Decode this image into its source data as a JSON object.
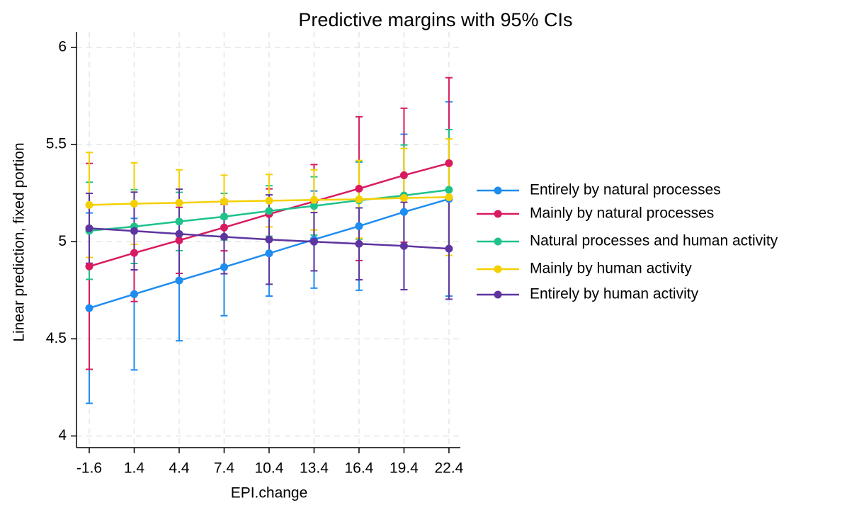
{
  "chart_data": {
    "type": "line",
    "title": "Predictive margins with 95% CIs",
    "x_label": "EPI.change",
    "y_label": "Linear prediction, fixed portion",
    "x": [
      -1.6,
      1.4,
      4.4,
      7.4,
      10.4,
      13.4,
      16.4,
      19.4,
      22.4
    ],
    "xlim": [
      -2.45,
      23.16
    ],
    "xticks": [
      -1.6,
      1.4,
      4.4,
      7.4,
      10.4,
      13.4,
      16.4,
      19.4,
      22.4
    ],
    "ylim": [
      3.94,
      6.08
    ],
    "yticks": [
      4,
      4.5,
      5,
      5.5,
      6
    ],
    "grid": true,
    "legend": "right",
    "series": [
      {
        "name": "Entirely by natural processes",
        "color": "#1f8cf0",
        "values": [
          4.658,
          4.73,
          4.8,
          4.869,
          4.94,
          5.011,
          5.08,
          5.153,
          5.22
        ],
        "errors": [
          0.49,
          0.39,
          0.31,
          0.25,
          0.22,
          0.25,
          0.33,
          0.4,
          0.5
        ]
      },
      {
        "name": "Mainly by natural processes",
        "color": "#d81b60",
        "values": [
          4.873,
          4.942,
          5.007,
          5.073,
          5.142,
          5.207,
          5.273,
          5.342,
          5.404
        ],
        "errors": [
          0.53,
          0.25,
          0.17,
          0.12,
          0.13,
          0.19,
          0.37,
          0.345,
          0.44
        ]
      },
      {
        "name": "Natural processes and human activity",
        "color": "#1ec28b",
        "values": [
          5.056,
          5.078,
          5.104,
          5.129,
          5.158,
          5.184,
          5.213,
          5.238,
          5.267
        ],
        "errors": [
          0.25,
          0.19,
          0.15,
          0.12,
          0.13,
          0.15,
          0.2,
          0.26,
          0.31
        ]
      },
      {
        "name": "Mainly by human activity",
        "color": "#f5d000",
        "values": [
          5.189,
          5.196,
          5.2,
          5.207,
          5.211,
          5.215,
          5.218,
          5.225,
          5.229
        ],
        "errors": [
          0.27,
          0.21,
          0.17,
          0.135,
          0.135,
          0.155,
          0.2,
          0.255,
          0.3
        ]
      },
      {
        "name": "Entirely by human activity",
        "color": "#5e35a0",
        "values": [
          5.069,
          5.055,
          5.04,
          5.025,
          5.011,
          5.0,
          4.989,
          4.978,
          4.964
        ],
        "errors": [
          0.18,
          0.2,
          0.23,
          0.19,
          0.23,
          0.15,
          0.185,
          0.225,
          0.26
        ]
      }
    ]
  }
}
